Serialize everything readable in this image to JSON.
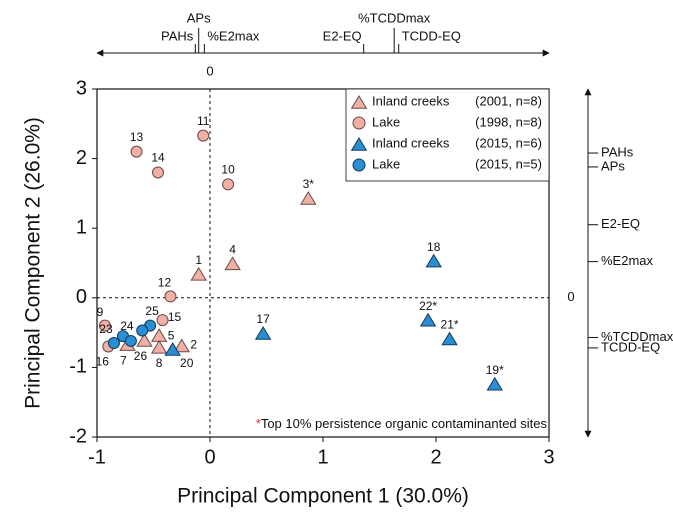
{
  "chart_data": {
    "type": "scatter",
    "x_label": "Principal Component 1 (30.0%)",
    "y_label": "Principal Component  2 (26.0%)",
    "xlim": [
      -1,
      3
    ],
    "xticks": [
      -1,
      0,
      1,
      2,
      3
    ],
    "ylim": [
      -2,
      3
    ],
    "yticks": [
      -2,
      -1,
      0,
      1,
      2,
      3
    ],
    "zero_lines": true,
    "note": "*Top 10% persistence organic contaminanted sites",
    "legend_position": "upper right",
    "series": [
      {
        "name": "Inland creeks",
        "period": "(2001, n=8)",
        "marker": "triangle",
        "color": "#f0b0a6",
        "labels": [
          "1",
          "4",
          "3*",
          "5",
          "7",
          "26",
          "8",
          "2"
        ],
        "x": [
          -0.1,
          0.2,
          0.87,
          -0.45,
          -0.73,
          -0.58,
          -0.45,
          -0.25
        ],
        "values": [
          0.33,
          0.48,
          1.42,
          -0.55,
          -0.68,
          -0.62,
          -0.72,
          -0.7
        ]
      },
      {
        "name": "Lake",
        "period": "(1998, n=8)",
        "marker": "circle",
        "color": "#f0b0a6",
        "labels": [
          "11",
          "13",
          "14",
          "10",
          "12",
          "9",
          "16",
          "15"
        ],
        "x": [
          -0.06,
          -0.65,
          -0.46,
          0.16,
          -0.35,
          -0.93,
          -0.9,
          -0.42
        ],
        "values": [
          2.33,
          2.1,
          1.8,
          1.63,
          0.02,
          -0.4,
          -0.7,
          -0.32
        ]
      },
      {
        "name": "Inland creeks",
        "period": "(2015, n=6)",
        "marker": "triangle",
        "color": "#2a8fd2",
        "labels": [
          "18",
          "17",
          "22*",
          "21*",
          "19*",
          "20"
        ],
        "x": [
          1.98,
          0.47,
          1.93,
          2.12,
          2.52,
          -0.33
        ],
        "values": [
          0.52,
          -0.52,
          -0.33,
          -0.6,
          -1.25,
          -0.75
        ]
      },
      {
        "name": "Lake",
        "period": "(2015, n=5)",
        "marker": "circle",
        "color": "#2a8fd2",
        "labels": [
          "23",
          null,
          "24",
          "25",
          null
        ],
        "x": [
          -0.85,
          -0.77,
          -0.7,
          -0.53,
          -0.6
        ],
        "values": [
          -0.65,
          -0.55,
          -0.62,
          -0.4,
          -0.47
        ]
      }
    ],
    "top_axis": {
      "lim": [
        -1,
        3
      ],
      "zero_label": "0",
      "ticks": [
        {
          "value": -0.13,
          "label": "PAHs"
        },
        {
          "value": -0.1,
          "label": "APs"
        },
        {
          "value": -0.05,
          "label": "%E2max"
        },
        {
          "value": 1.36,
          "label": "E2-EQ"
        },
        {
          "value": 1.63,
          "label": "%TCDDmax"
        },
        {
          "value": 1.67,
          "label": "TCDD-EQ"
        }
      ]
    },
    "right_axis": {
      "lim": [
        -2,
        3
      ],
      "zero_label": "0",
      "ticks": [
        {
          "value": 2.08,
          "label": "PAHs"
        },
        {
          "value": 1.88,
          "label": "APs"
        },
        {
          "value": 1.05,
          "label": "E2-EQ"
        },
        {
          "value": 0.52,
          "label": "%E2max"
        },
        {
          "value": -0.57,
          "label": "%TCDDmax"
        },
        {
          "value": -0.72,
          "label": "TCDD-EQ"
        }
      ]
    }
  }
}
